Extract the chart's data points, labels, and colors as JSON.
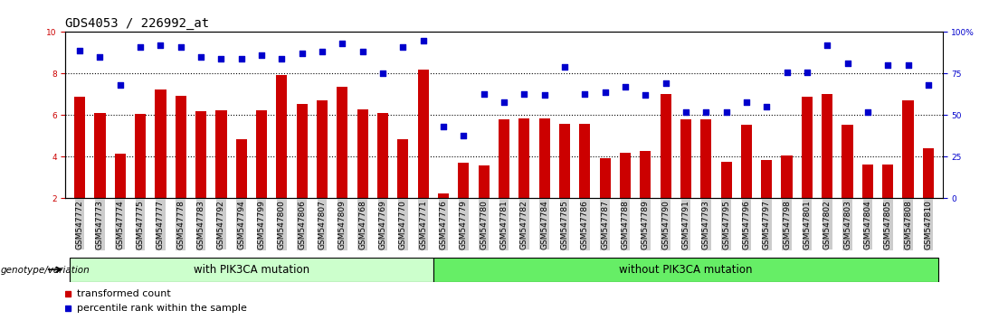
{
  "title": "GDS4053 / 226992_at",
  "samples": [
    "GSM547772",
    "GSM547773",
    "GSM547774",
    "GSM547775",
    "GSM547777",
    "GSM547778",
    "GSM547783",
    "GSM547792",
    "GSM547794",
    "GSM547799",
    "GSM547800",
    "GSM547806",
    "GSM547807",
    "GSM547809",
    "GSM547768",
    "GSM547769",
    "GSM547770",
    "GSM547771",
    "GSM547776",
    "GSM547779",
    "GSM547780",
    "GSM547781",
    "GSM547782",
    "GSM547784",
    "GSM547785",
    "GSM547786",
    "GSM547787",
    "GSM547788",
    "GSM547789",
    "GSM547790",
    "GSM547791",
    "GSM547793",
    "GSM547795",
    "GSM547796",
    "GSM547797",
    "GSM547798",
    "GSM547801",
    "GSM547802",
    "GSM547803",
    "GSM547804",
    "GSM547805",
    "GSM547808",
    "GSM547810"
  ],
  "bar_values": [
    6.9,
    6.1,
    4.15,
    6.05,
    7.25,
    6.95,
    6.2,
    6.25,
    4.85,
    6.25,
    7.95,
    6.55,
    6.7,
    7.35,
    6.3,
    6.1,
    4.85,
    8.2,
    2.25,
    3.7,
    3.6,
    5.8,
    5.85,
    5.85,
    5.6,
    5.6,
    3.95,
    4.2,
    4.3,
    7.0,
    5.8,
    5.8,
    3.75,
    5.55,
    3.85,
    4.05,
    6.9,
    7.0,
    5.55,
    3.65,
    3.65,
    6.7,
    4.4
  ],
  "dot_values": [
    89,
    85,
    68,
    91,
    92,
    91,
    85,
    84,
    84,
    86,
    84,
    87,
    88,
    93,
    88,
    75,
    91,
    95,
    43,
    38,
    63,
    58,
    63,
    62,
    79,
    63,
    64,
    67,
    62,
    69,
    52,
    52,
    52,
    58,
    55,
    76,
    76,
    92,
    81,
    52,
    80,
    80,
    68
  ],
  "with_mutation_count": 18,
  "bar_color": "#cc0000",
  "dot_color": "#0000cc",
  "ylim_left": [
    2,
    10
  ],
  "ylim_right": [
    0,
    100
  ],
  "yticks_left": [
    2,
    4,
    6,
    8,
    10
  ],
  "yticks_right": [
    0,
    25,
    50,
    75,
    100
  ],
  "grid_values": [
    4,
    6,
    8
  ],
  "with_label": "with PIK3CA mutation",
  "without_label": "without PIK3CA mutation",
  "genotype_label": "genotype/variation",
  "legend_bar": "transformed count",
  "legend_dot": "percentile rank within the sample",
  "title_fontsize": 10,
  "tick_fontsize": 6.5,
  "with_bg_color": "#ccffcc",
  "without_bg_color": "#66ee66",
  "tick_bg_color": "#cccccc",
  "label_fontsize": 8.5
}
